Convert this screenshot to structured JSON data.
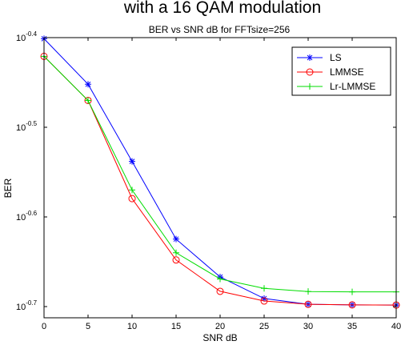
{
  "suptitle": "with a 16 QAM modulation",
  "chart_data": {
    "type": "line",
    "title": "BER vs SNR dB for FFTsize=256",
    "xlabel": "SNR dB",
    "ylabel": "BER",
    "xlim": [
      0,
      40
    ],
    "ylim_log10": [
      -0.7125,
      -0.4
    ],
    "yscale": "log",
    "grid": false,
    "legend_position": "top-right",
    "x_ticks": [
      "0",
      "5",
      "10",
      "15",
      "20",
      "25",
      "30",
      "35",
      "40"
    ],
    "y_ticks": [
      {
        "base": "10",
        "exp": "-0.4",
        "log10": -0.4
      },
      {
        "base": "10",
        "exp": "-0.5",
        "log10": -0.5
      },
      {
        "base": "10",
        "exp": "-0.6",
        "log10": -0.6
      },
      {
        "base": "10",
        "exp": "-0.7",
        "log10": -0.7
      }
    ],
    "x": [
      0,
      5,
      10,
      15,
      20,
      25,
      30,
      35,
      40
    ],
    "series": [
      {
        "name": "LS",
        "color": "#0000ff",
        "marker": "asterisk",
        "values": [
          0.397,
          0.3532,
          0.2897,
          0.2373,
          0.2153,
          0.2037,
          0.2007,
          0.2004,
          0.2003
        ]
      },
      {
        "name": "LMMSE",
        "color": "#ff0000",
        "marker": "circle",
        "values": [
          0.3794,
          0.3388,
          0.2633,
          0.2249,
          0.2075,
          0.2024,
          0.2007,
          0.2004,
          0.2003
        ]
      },
      {
        "name": "Lr-LMMSE",
        "color": "#00dd00",
        "marker": "plus",
        "values": [
          0.3794,
          0.3388,
          0.2692,
          0.2291,
          0.2142,
          0.2091,
          0.2074,
          0.2072,
          0.2072
        ]
      }
    ]
  }
}
